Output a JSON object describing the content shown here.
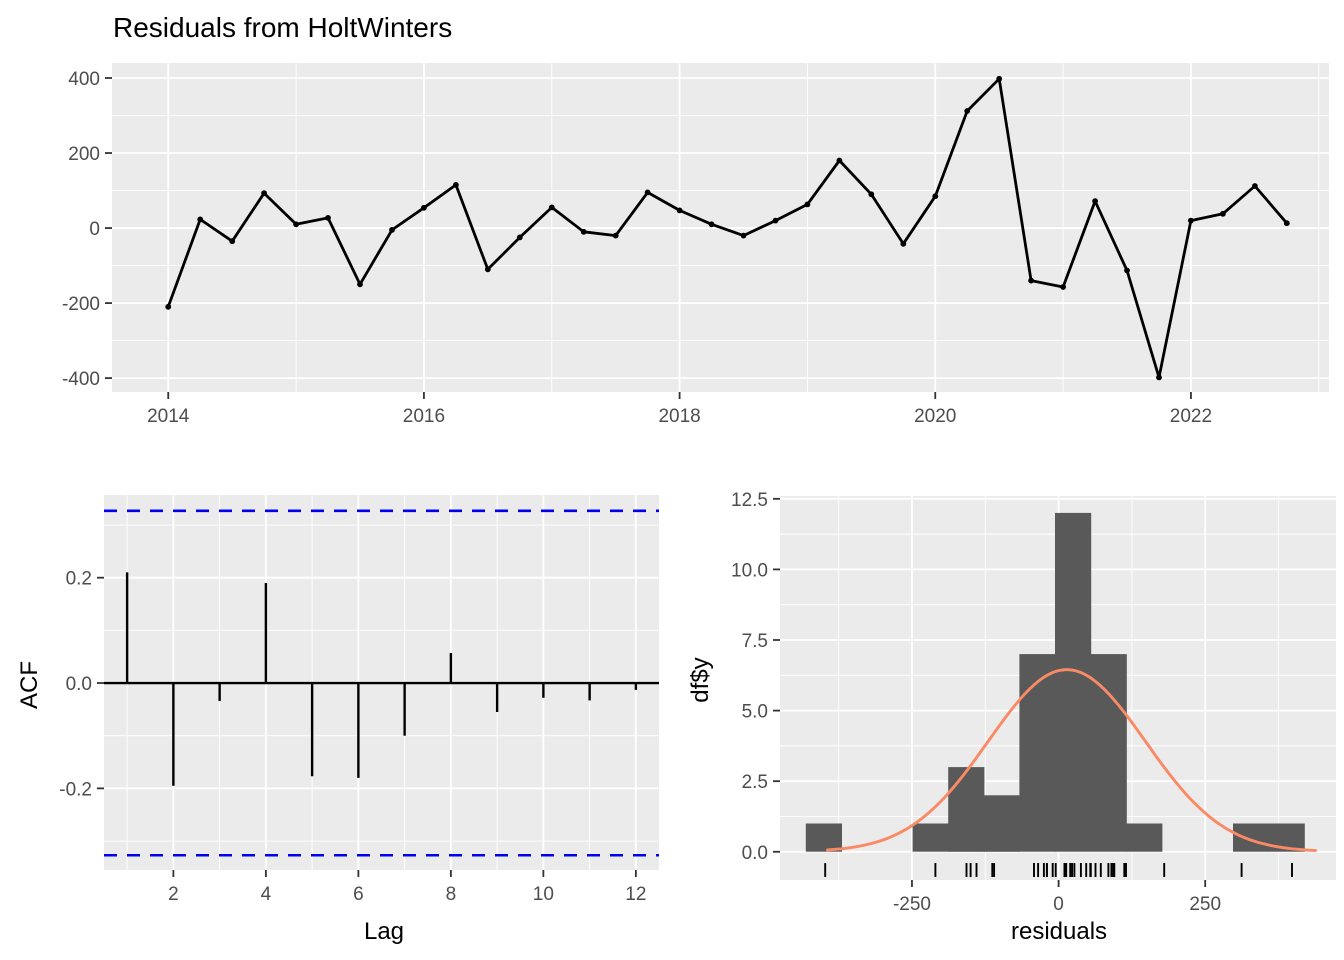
{
  "title": "Residuals from HoltWinters",
  "colors": {
    "panel_background": "#EBEBEB",
    "grid_major": "#FFFFFF",
    "grid_minor": "#FFFFFF",
    "series": "#000000",
    "confidence_line": "#0000EE",
    "histogram_fill": "#595959",
    "normal_curve": "#FA8A66",
    "axis_text": "#4D4D4D",
    "axis_tick": "#333333",
    "title_text": "#000000"
  },
  "chart_data": [
    {
      "type": "line",
      "name": "residuals-time-series",
      "title": "Residuals from HoltWinters",
      "xlabel": "",
      "ylabel": "",
      "x_start": 2014.0,
      "x_step": 0.25,
      "values": [
        -210,
        23,
        -35,
        93,
        10,
        27,
        -150,
        -5,
        54,
        115,
        -110,
        -25,
        55,
        -10,
        -20,
        95,
        47,
        10,
        -20,
        20,
        63,
        180,
        90,
        -42,
        85,
        312,
        398,
        -140,
        -157,
        72,
        -113,
        -398,
        20,
        38,
        112,
        13
      ],
      "xticks": [
        2014,
        2016,
        2018,
        2020,
        2022
      ],
      "xtick_labels": [
        "2014",
        "2016",
        "2018",
        "2020",
        "2022"
      ],
      "xminor": [
        2015,
        2017,
        2019,
        2021,
        2023
      ],
      "yticks": [
        400,
        200,
        0,
        -200,
        -400
      ],
      "ytick_labels": [
        "400",
        "200",
        "0",
        "-200",
        "-400"
      ],
      "yminor": [
        300,
        100,
        -100,
        -300
      ],
      "xlim": [
        2013.56,
        2023.08
      ],
      "ylim": [
        -437,
        440
      ],
      "grid": true,
      "legend": "none"
    },
    {
      "type": "bar",
      "name": "acf",
      "xlabel": "Lag",
      "ylabel": "ACF",
      "categories": [
        1,
        2,
        3,
        4,
        5,
        6,
        7,
        8,
        9,
        10,
        11,
        12
      ],
      "values": [
        0.21,
        -0.195,
        -0.034,
        0.19,
        -0.177,
        -0.18,
        -0.1,
        0.057,
        -0.055,
        -0.028,
        -0.033,
        -0.013
      ],
      "confidence_bound_upper": 0.327,
      "confidence_bound_lower": -0.327,
      "xticks": [
        2,
        4,
        6,
        8,
        10,
        12
      ],
      "xtick_labels": [
        "2",
        "4",
        "6",
        "8",
        "10",
        "12"
      ],
      "xminor": [
        1,
        3,
        5,
        7,
        9,
        11
      ],
      "yticks": [
        0.2,
        0,
        -0.2
      ],
      "ytick_labels": [
        "0.2",
        "0.0",
        "-0.2"
      ],
      "yminor": [
        0.3,
        0.1,
        -0.1,
        -0.3
      ],
      "xlim": [
        0.5,
        12.5
      ],
      "ylim": [
        -0.355,
        0.357
      ],
      "grid": true,
      "legend": "none"
    },
    {
      "type": "histogram",
      "name": "residual-histogram",
      "xlabel": "residuals",
      "ylabel": "df$y",
      "bin_start": -431,
      "bin_width": 60.7,
      "counts": [
        1,
        0,
        0,
        1,
        3,
        2,
        7,
        12,
        7,
        1,
        0,
        0,
        1,
        1
      ],
      "normal_curve": {
        "mean": 14,
        "sd": 134,
        "peak": 6.45
      },
      "rug_values": [
        -210,
        23,
        -35,
        93,
        10,
        27,
        -150,
        -5,
        54,
        115,
        -110,
        -25,
        55,
        -10,
        -20,
        95,
        47,
        10,
        -20,
        20,
        63,
        180,
        90,
        -42,
        85,
        312,
        398,
        -140,
        -157,
        72,
        -113,
        -398,
        20,
        38,
        112,
        13
      ],
      "xticks": [
        -250,
        0,
        250
      ],
      "xtick_labels": [
        "-250",
        "0",
        "250"
      ],
      "xminor": [
        -375,
        -125,
        125,
        375
      ],
      "yticks": [
        0,
        2.5,
        5,
        7.5,
        10,
        12.5
      ],
      "ytick_labels": [
        "0.0",
        "2.5",
        "5.0",
        "7.5",
        "10.0",
        "12.5"
      ],
      "yminor": [
        1.25,
        3.75,
        6.25,
        8.75,
        11.25
      ],
      "xlim": [
        -475,
        473
      ],
      "ylim": [
        -1.0,
        12.6
      ],
      "grid": true,
      "legend": "none"
    }
  ]
}
